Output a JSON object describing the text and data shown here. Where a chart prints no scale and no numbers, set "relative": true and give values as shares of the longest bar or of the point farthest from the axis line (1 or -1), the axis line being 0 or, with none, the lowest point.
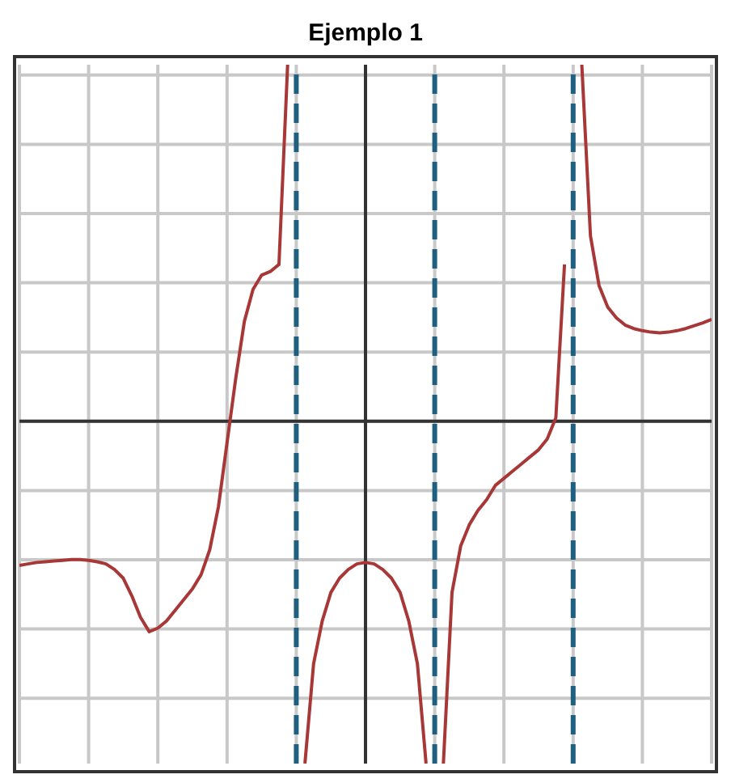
{
  "chart_data": {
    "type": "line",
    "title": "Ejemplo 1",
    "relative": true,
    "categories": [
      null,
      null,
      null,
      null,
      null,
      null,
      null,
      null,
      null,
      null,
      null,
      null,
      null,
      null,
      null,
      null,
      null,
      null,
      null,
      null,
      null,
      null,
      null,
      null,
      null,
      null,
      null,
      null,
      null,
      null,
      null,
      null,
      null,
      null,
      null,
      null,
      null,
      null,
      null,
      null,
      null,
      null,
      null,
      null,
      null,
      null,
      null,
      null,
      null,
      null,
      null,
      null,
      null,
      null,
      null,
      null,
      null,
      null,
      null,
      null,
      null,
      null,
      null,
      null,
      null,
      null,
      null,
      null,
      null,
      null,
      null,
      null,
      null,
      null,
      null,
      null,
      null,
      null,
      null,
      null,
      null
    ],
    "series": [
      {
        "color": "#a83838",
        "values": [
          -0.404,
          -0.4,
          -0.396,
          -0.394,
          -0.392,
          -0.39,
          -0.388,
          -0.388,
          -0.39,
          -0.394,
          -0.4,
          -0.416,
          -0.44,
          -0.49,
          -0.55,
          -0.59,
          -0.58,
          -0.56,
          -0.53,
          -0.5,
          -0.47,
          -0.43,
          -0.36,
          -0.24,
          -0.06,
          0.12,
          0.28,
          0.37,
          0.41,
          0.42,
          0.44,
          1,
          null,
          null,
          null,
          null,
          null,
          null,
          null,
          null,
          null,
          null,
          null,
          null,
          null,
          null,
          null,
          null,
          null,
          null,
          null,
          null,
          null,
          null,
          null,
          null,
          null,
          null,
          null,
          null,
          null,
          null,
          null,
          null,
          null,
          null,
          null,
          null,
          null,
          null,
          null,
          null,
          null,
          null,
          null,
          null,
          null,
          null,
          null,
          null,
          null
        ]
      },
      {
        "color": "#a83838",
        "values": [
          null,
          null,
          null,
          null,
          null,
          null,
          null,
          null,
          null,
          null,
          null,
          null,
          null,
          null,
          null,
          null,
          null,
          null,
          null,
          null,
          null,
          null,
          null,
          null,
          null,
          null,
          null,
          null,
          null,
          null,
          null,
          null,
          null,
          -0.96,
          -0.68,
          -0.56,
          -0.48,
          -0.44,
          -0.416,
          -0.4,
          -0.396,
          -0.4,
          -0.416,
          -0.44,
          -0.48,
          -0.56,
          -0.68,
          -0.96,
          null,
          null,
          null,
          null,
          null,
          null,
          null,
          null,
          null,
          null,
          null,
          null,
          null,
          null,
          null,
          null,
          null,
          null,
          null,
          null,
          null,
          null,
          null,
          null,
          null,
          null,
          null,
          null,
          null,
          null,
          null,
          null,
          null
        ]
      },
      {
        "color": "#a83838",
        "values": [
          null,
          null,
          null,
          null,
          null,
          null,
          null,
          null,
          null,
          null,
          null,
          null,
          null,
          null,
          null,
          null,
          null,
          null,
          null,
          null,
          null,
          null,
          null,
          null,
          null,
          null,
          null,
          null,
          null,
          null,
          null,
          null,
          null,
          null,
          null,
          null,
          null,
          null,
          null,
          null,
          null,
          null,
          null,
          null,
          null,
          null,
          null,
          null,
          null,
          -0.96,
          -0.48,
          -0.35,
          -0.29,
          -0.25,
          -0.22,
          -0.18,
          -0.16,
          -0.14,
          -0.12,
          -0.1,
          -0.08,
          -0.05,
          0.01,
          0.44,
          null,
          null,
          null,
          null,
          null,
          null,
          null,
          null,
          null,
          null,
          null,
          null,
          null,
          null,
          null,
          null,
          null
        ]
      },
      {
        "color": "#a83838",
        "values": [
          null,
          null,
          null,
          null,
          null,
          null,
          null,
          null,
          null,
          null,
          null,
          null,
          null,
          null,
          null,
          null,
          null,
          null,
          null,
          null,
          null,
          null,
          null,
          null,
          null,
          null,
          null,
          null,
          null,
          null,
          null,
          null,
          null,
          null,
          null,
          null,
          null,
          null,
          null,
          null,
          null,
          null,
          null,
          null,
          null,
          null,
          null,
          null,
          null,
          null,
          null,
          null,
          null,
          null,
          null,
          null,
          null,
          null,
          null,
          null,
          null,
          null,
          null,
          null,
          null,
          1,
          0.52,
          0.38,
          0.32,
          0.29,
          0.27,
          0.26,
          0.254,
          0.25,
          0.248,
          0.25,
          0.254,
          0.26,
          0.268,
          0.276,
          0.286
        ]
      }
    ],
    "grid": true,
    "marker": "none",
    "line_style": "solid"
  }
}
